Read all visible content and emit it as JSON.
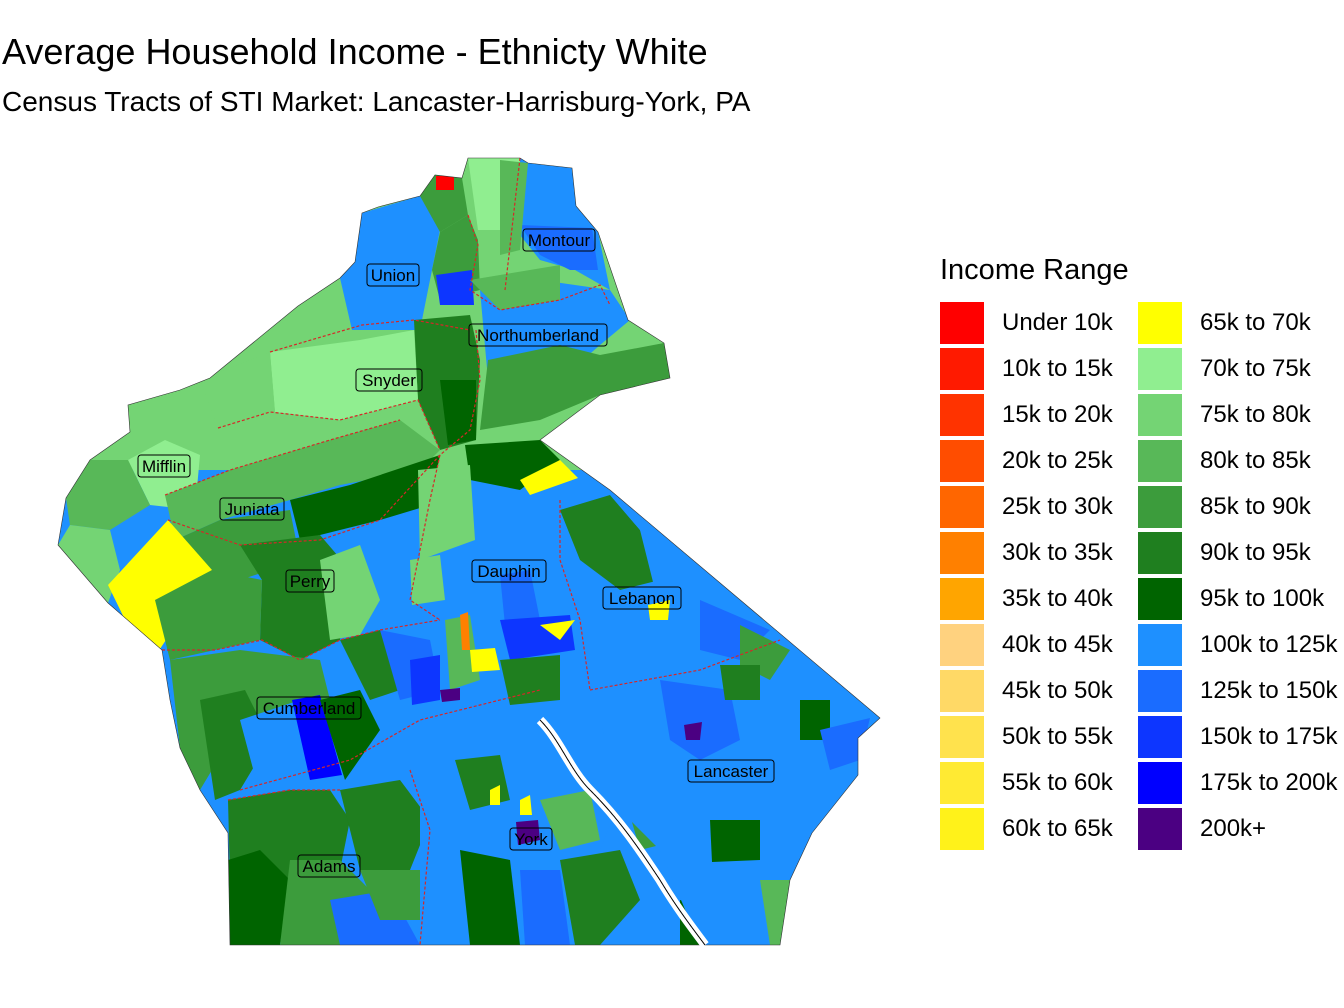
{
  "title": "Average Household Income - Ethnicty White",
  "subtitle": "Census Tracts of STI Market: Lancaster-Harrisburg-York, PA",
  "legend": {
    "title": "Income Range",
    "items": [
      {
        "label": "Under 10k",
        "color": "#ff0000"
      },
      {
        "label": "10k to 15k",
        "color": "#ff1a00"
      },
      {
        "label": "15k to 20k",
        "color": "#ff3300"
      },
      {
        "label": "20k to 25k",
        "color": "#ff4d00"
      },
      {
        "label": "25k to 30k",
        "color": "#ff6600"
      },
      {
        "label": "30k to 35k",
        "color": "#ff8000"
      },
      {
        "label": "35k to 40k",
        "color": "#ffa500"
      },
      {
        "label": "40k to 45k",
        "color": "#ffd27f"
      },
      {
        "label": "45k to 50k",
        "color": "#ffd966"
      },
      {
        "label": "50k to 55k",
        "color": "#ffe24d"
      },
      {
        "label": "55k to 60k",
        "color": "#ffea33"
      },
      {
        "label": "60k to 65k",
        "color": "#fff21a"
      },
      {
        "label": "65k to 70k",
        "color": "#ffff00"
      },
      {
        "label": "70k to 75k",
        "color": "#90ee90"
      },
      {
        "label": "75k to 80k",
        "color": "#74d474"
      },
      {
        "label": "80k to 85k",
        "color": "#58b858"
      },
      {
        "label": "85k to 90k",
        "color": "#3c9c3c"
      },
      {
        "label": "90k to 95k",
        "color": "#1f7f1f"
      },
      {
        "label": "95k to 100k",
        "color": "#006400"
      },
      {
        "label": "100k to 125k",
        "color": "#1e90ff"
      },
      {
        "label": "125k to 150k",
        "color": "#1a6cff"
      },
      {
        "label": "150k to 175k",
        "color": "#0d36ff"
      },
      {
        "label": "175k to 200k",
        "color": "#0000ff"
      },
      {
        "label": "200k+",
        "color": "#4b0082"
      }
    ]
  },
  "counties": [
    {
      "name": "Montour"
    },
    {
      "name": "Union"
    },
    {
      "name": "Northumberland"
    },
    {
      "name": "Snyder"
    },
    {
      "name": "Mifflin"
    },
    {
      "name": "Juniata"
    },
    {
      "name": "Perry"
    },
    {
      "name": "Dauphin"
    },
    {
      "name": "Lebanon"
    },
    {
      "name": "Cumberland"
    },
    {
      "name": "Lancaster"
    },
    {
      "name": "York"
    },
    {
      "name": "Adams"
    }
  ],
  "colors": {
    "county_border": "#d62728",
    "river": "#ffffff",
    "label_fill_alpha": "rgba(255,255,255,0.0)"
  }
}
